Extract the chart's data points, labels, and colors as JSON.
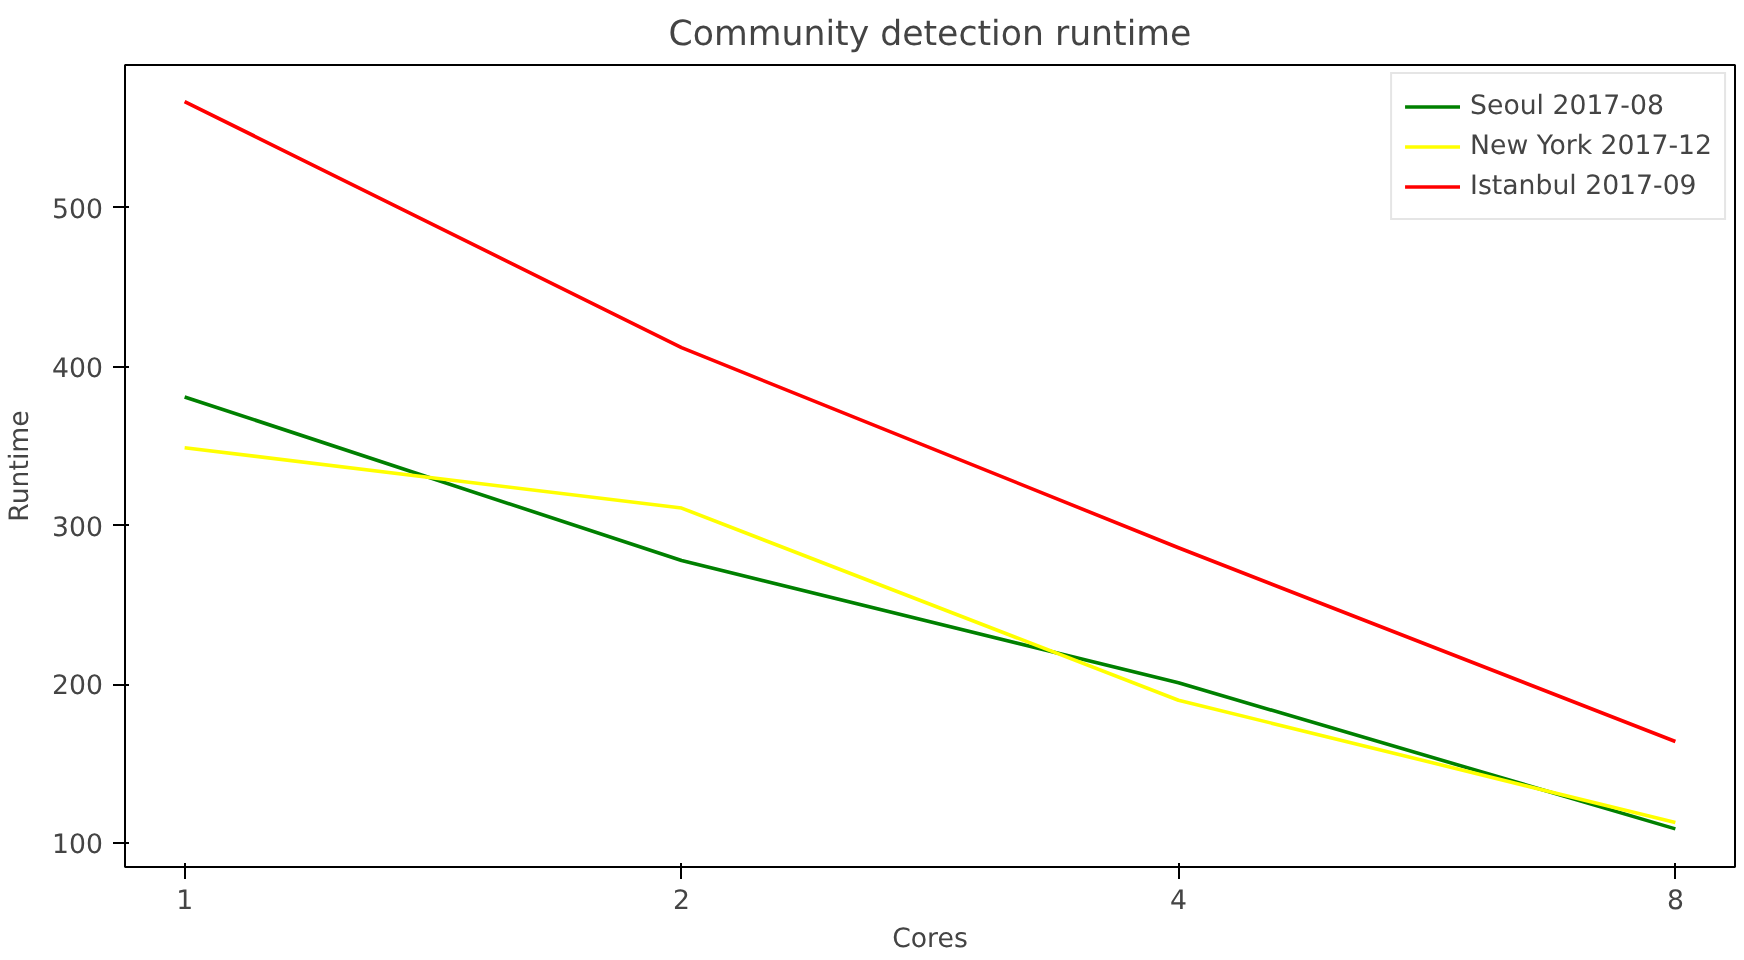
{
  "chart_data": {
    "type": "line",
    "title": "Community detection runtime",
    "xlabel": "Cores",
    "ylabel": "Runtime",
    "categories": [
      "1",
      "2",
      "4",
      "8"
    ],
    "series": [
      {
        "name": "Seoul 2017-08",
        "color": "#008000",
        "values": [
          381,
          278,
          201,
          109
        ]
      },
      {
        "name": "New York 2017-12",
        "color": "#ffff00",
        "values": [
          349,
          311,
          190,
          113
        ]
      },
      {
        "name": "Istanbul 2017-09",
        "color": "#ff0000",
        "values": [
          567,
          412,
          286,
          164
        ]
      }
    ],
    "ylim": [
      85,
      590
    ],
    "yticks": [
      100,
      200,
      300,
      400,
      500
    ],
    "grid": false,
    "legend": "top right",
    "marker": "none",
    "line_style": "solid"
  }
}
